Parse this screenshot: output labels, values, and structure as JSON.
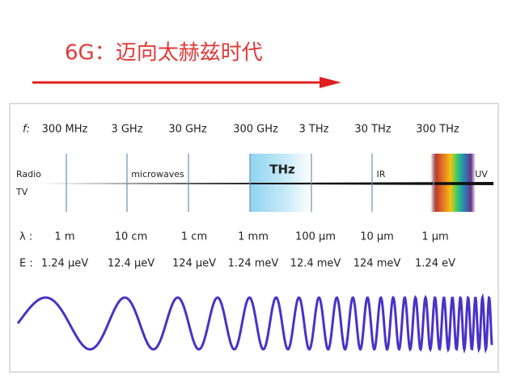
{
  "title": "6G：迈向太赫兹时代",
  "frequency": {
    "label": "f:",
    "values": [
      "300 MHz",
      "3 GHz",
      "30 GHz",
      "300 GHz",
      "3 THz",
      "30 THz",
      "300 THz"
    ]
  },
  "regions": {
    "radio": "Radio",
    "tv": "TV",
    "microwaves": "microwaves",
    "thz": "THz",
    "ir": "IR",
    "uv": "UV"
  },
  "wavelength": {
    "label": "λ :",
    "values": [
      "1 m",
      "10 cm",
      "1 cm",
      "1 mm",
      "100 µm",
      "10 µm",
      "1 µm"
    ]
  },
  "energy": {
    "label": "E :",
    "values": [
      "1.24 µeV",
      "12.4 µeV",
      "124 µeV",
      "1.24 meV",
      "12.4 meV",
      "124 meV",
      "1.24 eV"
    ]
  }
}
